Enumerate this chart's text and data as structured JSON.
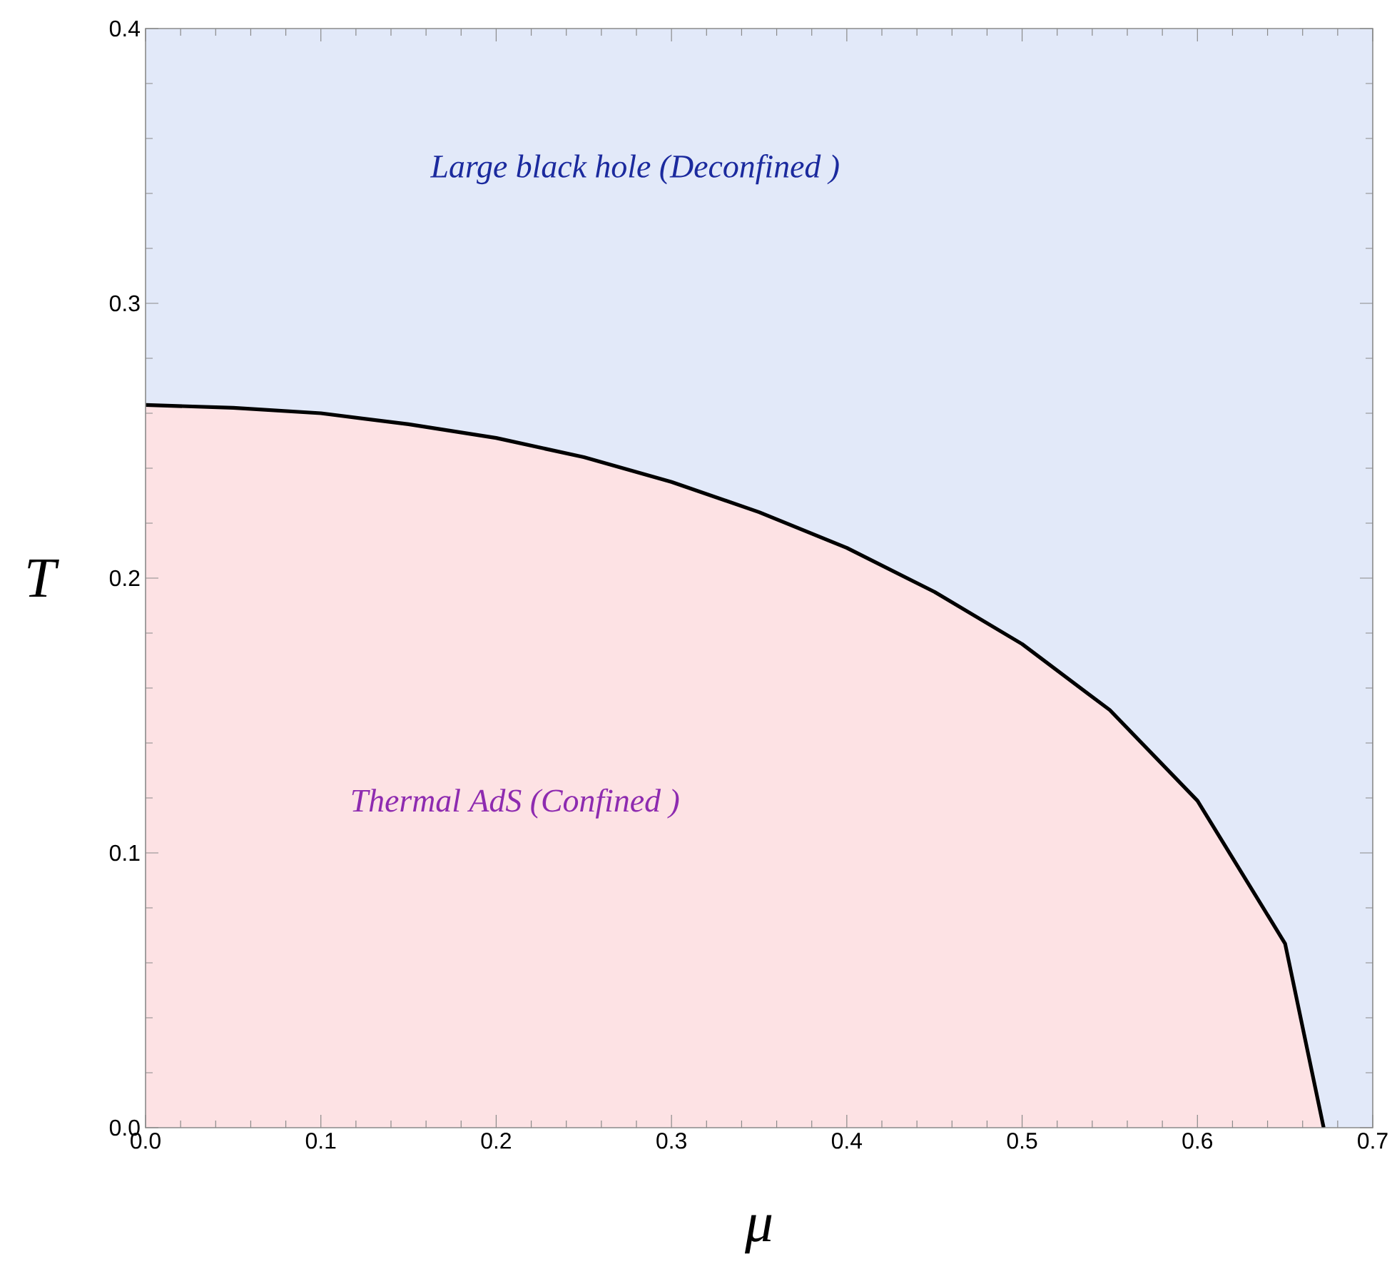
{
  "chart_data": {
    "type": "area",
    "xlabel": "μ",
    "ylabel": "T",
    "x": [
      0,
      0.05,
      0.1,
      0.15,
      0.2,
      0.25,
      0.3,
      0.35,
      0.4,
      0.45,
      0.5,
      0.55,
      0.6,
      0.65,
      0.672
    ],
    "series": [
      {
        "color": "#fde2e4",
        "values": [
          0.263,
          0.262,
          0.26,
          0.256,
          0.251,
          0.244,
          0.235,
          0.224,
          0.211,
          0.195,
          0.176,
          0.152,
          0.119,
          0.067,
          0
        ]
      }
    ],
    "bands": [
      {
        "axis": "y",
        "from": 0,
        "to": 0.4,
        "color": "#e2e9f9"
      }
    ],
    "annotations": [
      "Large black hole (Deconfined )",
      "Thermal AdS (Confined )"
    ],
    "xlim": [
      0,
      0.7
    ],
    "ylim": [
      0,
      0.4
    ],
    "xticks": [
      {
        "value": 0,
        "label": "0.0"
      },
      0.1,
      0.2,
      0.3,
      0.4,
      0.5,
      0.6,
      0.7
    ],
    "yticks": [
      {
        "value": 0,
        "label": "0.0"
      },
      0.1,
      0.2,
      0.3,
      0.4
    ]
  }
}
